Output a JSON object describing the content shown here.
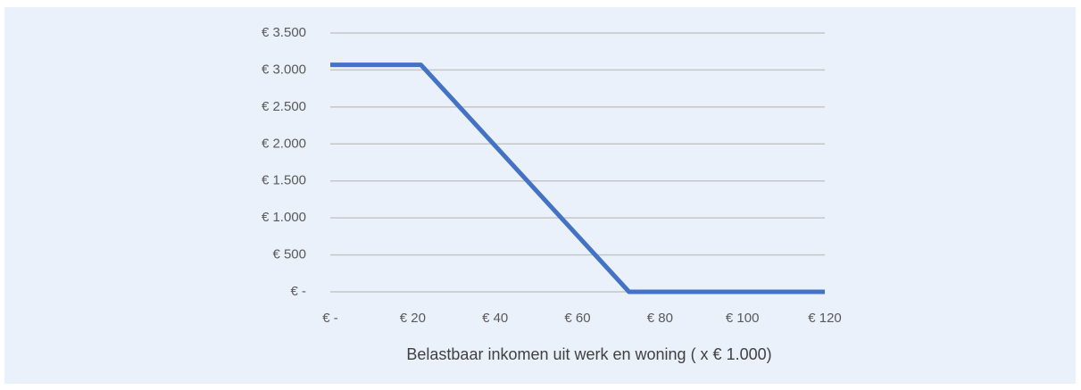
{
  "chart_data": {
    "type": "line",
    "xlabel": "Belastbaar inkomen uit werk en woning ( x € 1.000)",
    "x": [
      0,
      22,
      72.5,
      120
    ],
    "values": [
      3070,
      3070,
      0,
      0
    ],
    "color": "#4472c4",
    "xlim": [
      0,
      120
    ],
    "xticks": [
      {
        "value": 0,
        "label": "€ -"
      },
      {
        "value": 20,
        "label": "€ 20"
      },
      {
        "value": 40,
        "label": "€ 40"
      },
      {
        "value": 60,
        "label": "€ 60"
      },
      {
        "value": 80,
        "label": "€ 80"
      },
      {
        "value": 100,
        "label": "€ 100"
      },
      {
        "value": 120,
        "label": "€ 120"
      }
    ],
    "ylim": [
      0,
      3500
    ],
    "yticks": [
      {
        "value": 0,
        "label": "€ -"
      },
      {
        "value": 500,
        "label": "€ 500"
      },
      {
        "value": 1000,
        "label": "€ 1.000"
      },
      {
        "value": 1500,
        "label": "€ 1.500"
      },
      {
        "value": 2000,
        "label": "€ 2.000"
      },
      {
        "value": 2500,
        "label": "€ 2.500"
      },
      {
        "value": 3000,
        "label": "€ 3.000"
      },
      {
        "value": 3500,
        "label": "€ 3.500"
      }
    ],
    "grid": true
  }
}
